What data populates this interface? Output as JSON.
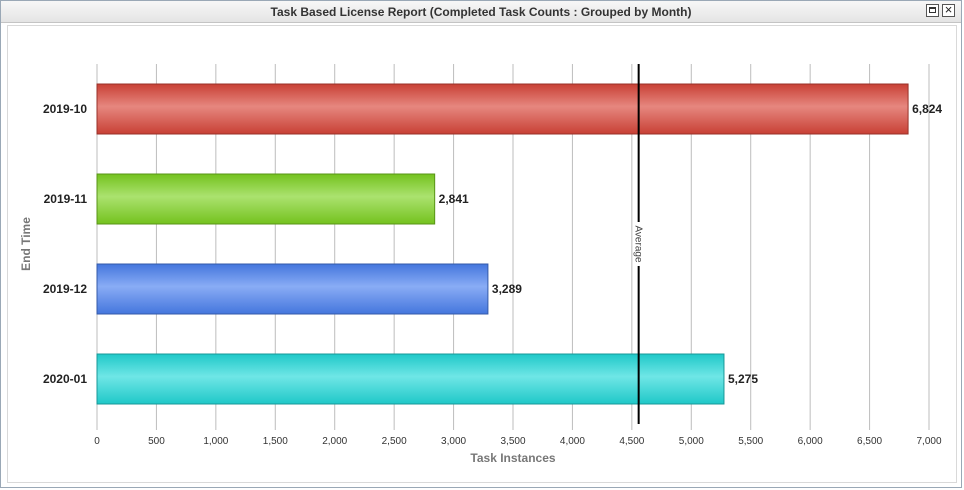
{
  "window": {
    "title": "Task Based License Report (Completed Task Counts : Grouped by Month)",
    "restore_icon": "restore-window-icon",
    "close_icon": "close-icon"
  },
  "chart_data": {
    "type": "bar",
    "orientation": "horizontal",
    "categories": [
      "2019-10",
      "2019-11",
      "2019-12",
      "2020-01"
    ],
    "values": [
      6824,
      2841,
      3289,
      5275
    ],
    "value_labels": [
      "6,824",
      "2,841",
      "3,289",
      "5,275"
    ],
    "colors": [
      "#d9463a",
      "#7ed321",
      "#4a80f0",
      "#22d9d9"
    ],
    "xlabel": "Task Instances",
    "ylabel": "End Time",
    "xlim": [
      0,
      7000
    ],
    "x_ticks": [
      0,
      500,
      1000,
      1500,
      2000,
      2500,
      3000,
      3500,
      4000,
      4500,
      5000,
      5500,
      6000,
      6500,
      7000
    ],
    "x_tick_labels": [
      "0",
      "500",
      "1,000",
      "1,500",
      "2,000",
      "2,500",
      "3,000",
      "3,500",
      "4,000",
      "4,500",
      "5,000",
      "5,500",
      "6,000",
      "6,500",
      "7,000"
    ],
    "grid": true,
    "reference_line": {
      "value": 4557.25,
      "label": "Average"
    }
  }
}
